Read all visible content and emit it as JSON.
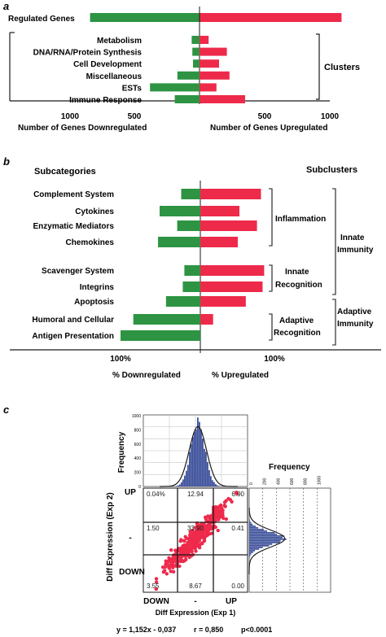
{
  "colors": {
    "down": "#2e9443",
    "up": "#ee2a4b",
    "hist": "#3c4f9a",
    "ink": "#1a1a1a"
  },
  "chart_data": [
    {
      "panel": "a",
      "type": "bar",
      "orientation": "diverging-horizontal",
      "top_label": "Regulated Genes",
      "top_down": 840,
      "top_up": 1090,
      "categories": [
        "Metabolism",
        "DNA/RNA/Protein Synthesis",
        "Cell Development",
        "Miscellaneous",
        "ESTs",
        "Immune Response"
      ],
      "series": [
        {
          "name": "Number of Genes Downregulated",
          "values": [
            60,
            55,
            50,
            170,
            380,
            190
          ]
        },
        {
          "name": "Number of Genes Upregulated",
          "values": [
            70,
            210,
            150,
            230,
            130,
            350
          ]
        }
      ],
      "group_label": "Clusters",
      "ticks_left": [
        "1000",
        "500"
      ],
      "ticks_right": [
        "500",
        "1000"
      ],
      "xlabel_left": "Number of Genes Downregulated",
      "xlabel_right": "Number of Genes Upregulated"
    },
    {
      "panel": "b",
      "type": "bar",
      "orientation": "diverging-horizontal",
      "left_header": "Subcategories",
      "right_header": "Subclusters",
      "categories": [
        "Complement System",
        "Cytokines",
        "Enzymatic Mediators",
        "Chemokines",
        "Scavenger System",
        "Integrins",
        "Apoptosis",
        "Humoral and Cellular",
        "Antigen Presentation"
      ],
      "series": [
        {
          "name": "% Downregulated",
          "values": [
            24,
            51,
            29,
            53,
            20,
            22,
            43,
            84,
            100
          ]
        },
        {
          "name": "% Upregulated",
          "values": [
            76,
            49,
            71,
            47,
            80,
            78,
            57,
            16,
            0
          ]
        }
      ],
      "groups": [
        "Inflammation",
        "Innate Recognition",
        "Adaptive Recognition"
      ],
      "supergroups": [
        "Innate Immunity",
        "Adaptive Immunity"
      ],
      "ticks_left": "100%",
      "ticks_right": "100%",
      "xlabel_left": "% Downregulated",
      "xlabel_right": "% Upregulated"
    },
    {
      "panel": "c",
      "type": "scatter",
      "xlabel": "Diff Expression (Exp 1)",
      "ylabel": "Diff Expression (Exp 2)",
      "x_ticks": [
        "DOWN",
        "-",
        "UP"
      ],
      "y_ticks": [
        "UP",
        "-",
        "DOWN"
      ],
      "quadrant_percentages": [
        [
          "0.04%",
          "12.94",
          "6.90"
        ],
        [
          "1.50",
          "33.90",
          "0.41"
        ],
        [
          "3.55",
          "8.67",
          "0.00"
        ]
      ],
      "top_hist_ylabel": "Frequency",
      "top_hist_ticks": [
        "1000",
        "800",
        "600",
        "400",
        "200",
        "0"
      ],
      "side_hist_xlabel": "Frequency",
      "equation": "y = 1,152x - 0,037",
      "r": "r = 0,850",
      "p": "p<0.0001"
    }
  ]
}
